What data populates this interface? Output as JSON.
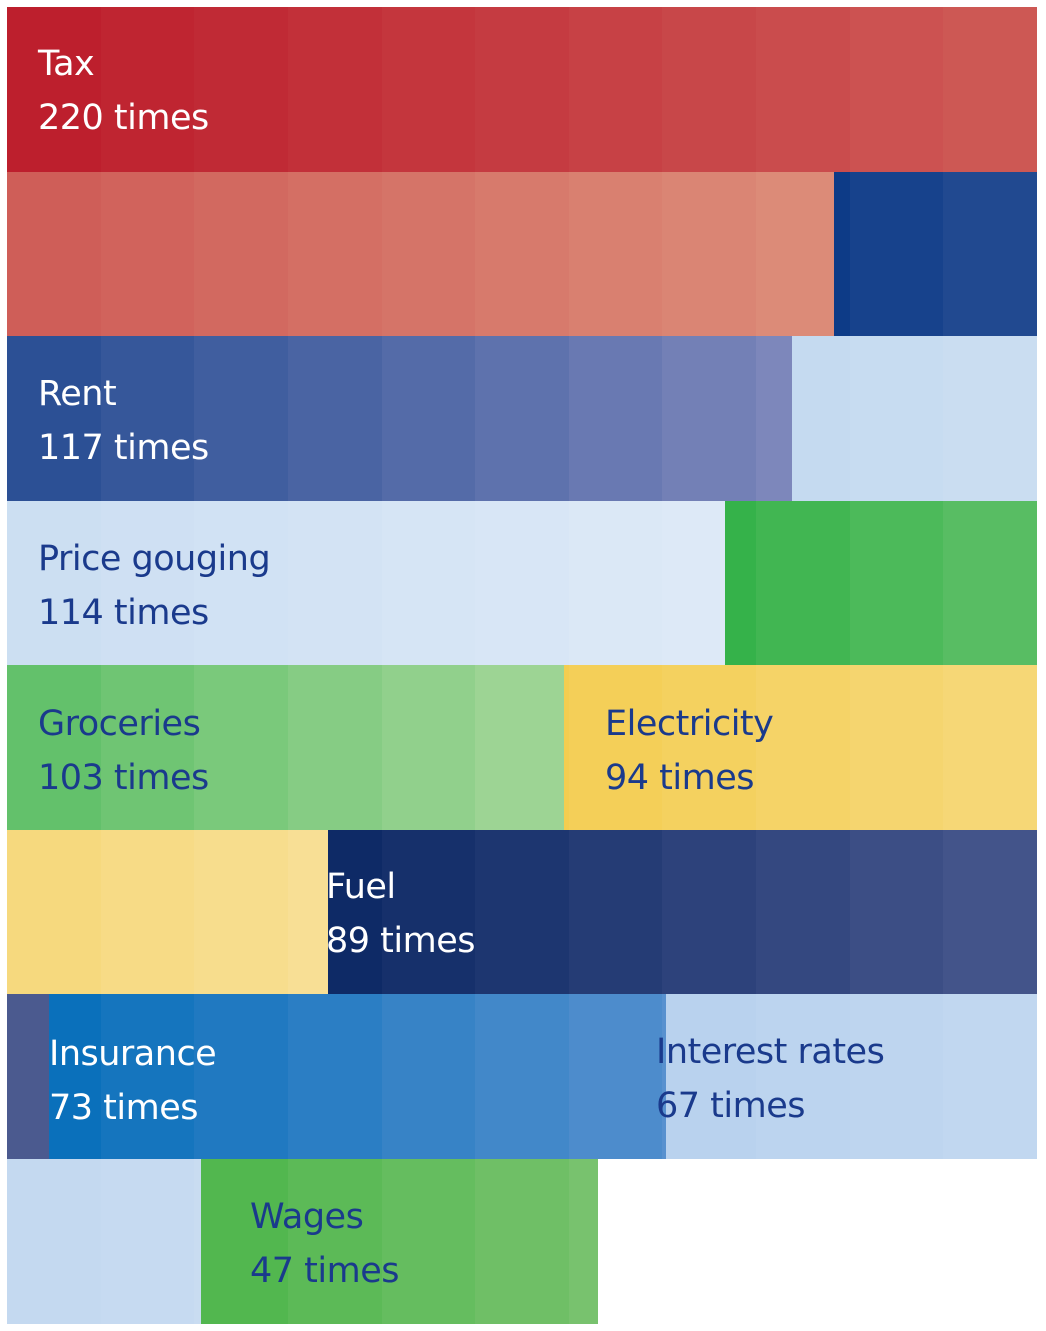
{
  "chart_data": {
    "type": "waffle",
    "unit_suffix": "times",
    "series": [
      {
        "name": "Tax",
        "value": 220,
        "color_start": "#bd1f2d",
        "color_end": "#dc8b78",
        "text_color": "#ffffff"
      },
      {
        "name": "Rent",
        "value": 117,
        "color_start": "#0d3b87",
        "color_end": "#7d87bb",
        "text_color": "#ffffff"
      },
      {
        "name": "Price gouging",
        "value": 114,
        "color_start": "#c5daf0",
        "color_end": "#dde9f7",
        "text_color": "#1a3a8c"
      },
      {
        "name": "Groceries",
        "value": 103,
        "color_start": "#35b24a",
        "color_end": "#9dd494",
        "text_color": "#1a3a8c"
      },
      {
        "name": "Electricity",
        "value": 94,
        "color_start": "#f3cd50",
        "color_end": "#f8df95",
        "text_color": "#1a3a8c"
      },
      {
        "name": "Fuel",
        "value": 89,
        "color_start": "#0e2a66",
        "color_end": "#4b5a8f",
        "text_color": "#ffffff"
      },
      {
        "name": "Insurance",
        "value": 73,
        "color_start": "#0a70bb",
        "color_end": "#5891cf",
        "text_color": "#ffffff"
      },
      {
        "name": "Interest rates",
        "value": 67,
        "color_start": "#b9d2ee",
        "color_end": "#c9dcf1",
        "text_color": "#1a3a8c"
      },
      {
        "name": "Wages",
        "value": 47,
        "color_start": "#52b74f",
        "color_end": "#78c26e",
        "text_color": "#1a3a8c"
      }
    ]
  }
}
